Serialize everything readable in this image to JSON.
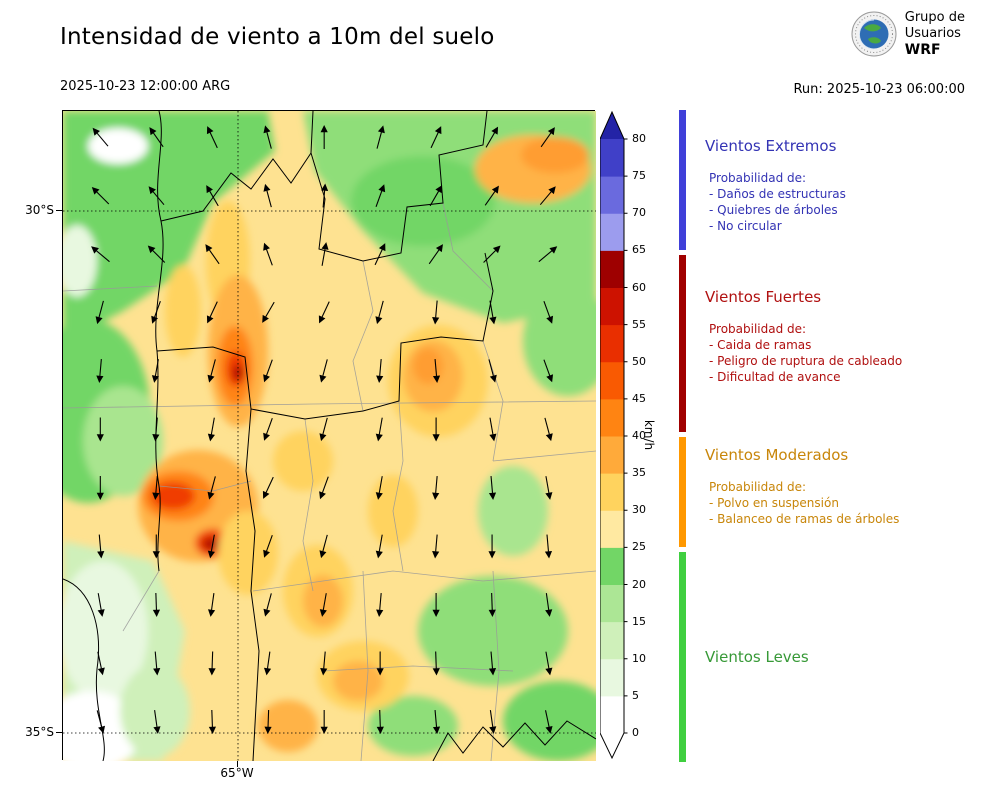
{
  "header": {
    "title": "Intensidad de viento a 10m del suelo",
    "valid_time": "2025-10-23 12:00:00 ARG",
    "run_label": "Run: 2025-10-23 06:00:00"
  },
  "logo": {
    "org_line1": "Grupo de",
    "org_line2": "Usuarios",
    "org_line3": "WRF"
  },
  "map": {
    "lat_ticks": [
      "30°S",
      "35°S"
    ],
    "lon_ticks": [
      "65°W"
    ],
    "arrow_grid": {
      "x_cols": [
        7,
        17.5,
        28,
        38.5,
        49,
        59.5,
        70,
        80.5,
        91
      ],
      "rows": [
        {
          "y": 4,
          "angles": [
            -40,
            -35,
            -25,
            -15,
            0,
            15,
            25,
            30,
            35
          ]
        },
        {
          "y": 13,
          "angles": [
            -45,
            -40,
            -30,
            -15,
            5,
            20,
            30,
            35,
            40
          ]
        },
        {
          "y": 22,
          "angles": [
            -50,
            -45,
            -35,
            -20,
            10,
            25,
            35,
            45,
            50
          ]
        },
        {
          "y": 31,
          "angles": [
            195,
            200,
            205,
            210,
            205,
            195,
            185,
            170,
            160
          ]
        },
        {
          "y": 40,
          "angles": [
            185,
            190,
            195,
            200,
            195,
            185,
            175,
            165,
            160
          ]
        },
        {
          "y": 49,
          "angles": [
            180,
            185,
            190,
            200,
            195,
            190,
            180,
            170,
            165
          ]
        },
        {
          "y": 58,
          "angles": [
            180,
            185,
            195,
            205,
            200,
            190,
            185,
            175,
            170
          ]
        },
        {
          "y": 67,
          "angles": [
            175,
            180,
            190,
            200,
            195,
            190,
            185,
            180,
            175
          ]
        },
        {
          "y": 76,
          "angles": [
            170,
            178,
            188,
            195,
            190,
            185,
            180,
            178,
            172
          ]
        },
        {
          "y": 85,
          "angles": [
            168,
            175,
            182,
            188,
            185,
            180,
            178,
            175,
            170
          ]
        },
        {
          "y": 94,
          "angles": [
            165,
            172,
            178,
            182,
            180,
            178,
            175,
            172,
            168
          ]
        }
      ]
    }
  },
  "colorbar": {
    "unit": "km/h",
    "levels": [
      0,
      5,
      10,
      15,
      20,
      25,
      30,
      35,
      40,
      45,
      50,
      55,
      60,
      65,
      70,
      75,
      80
    ],
    "segment_colors": [
      "#ffffff",
      "#e8f8e0",
      "#cff0ba",
      "#ace695",
      "#72d666",
      "#ffe9a1",
      "#ffd35e",
      "#ffaa3a",
      "#ff8412",
      "#f95a02",
      "#e92f00",
      "#cd1200",
      "#9e0000",
      "#9c9cee",
      "#6a6ade",
      "#4040c8"
    ],
    "over_color": "#2323a6",
    "under_color": "#ffffff"
  },
  "legend": {
    "sections": [
      {
        "title": "Vientos Extremos",
        "color": "#3333b4",
        "strip_color": "#4040d9",
        "subtitle": "Probabilidad de:",
        "items": [
          "- Daños de estructuras",
          "- Quiebres de árboles",
          "- No circular"
        ]
      },
      {
        "title": "Vientos Fuertes",
        "color": "#b01010",
        "strip_color": "#a00000",
        "subtitle": "Probabilidad de:",
        "items": [
          "- Caida de ramas",
          "- Peligro de ruptura de cableado",
          "- Dificultad de avance"
        ]
      },
      {
        "title": "Vientos Moderados",
        "color": "#c8860a",
        "strip_color": "#ff9800",
        "subtitle": "Probabilidad de:",
        "items": [
          "- Polvo en suspensión",
          "- Balanceo de ramas de árboles"
        ]
      },
      {
        "title": "Vientos Leves",
        "color": "#379937",
        "strip_color": "#3fcf3f",
        "subtitle": "",
        "items": []
      }
    ]
  }
}
